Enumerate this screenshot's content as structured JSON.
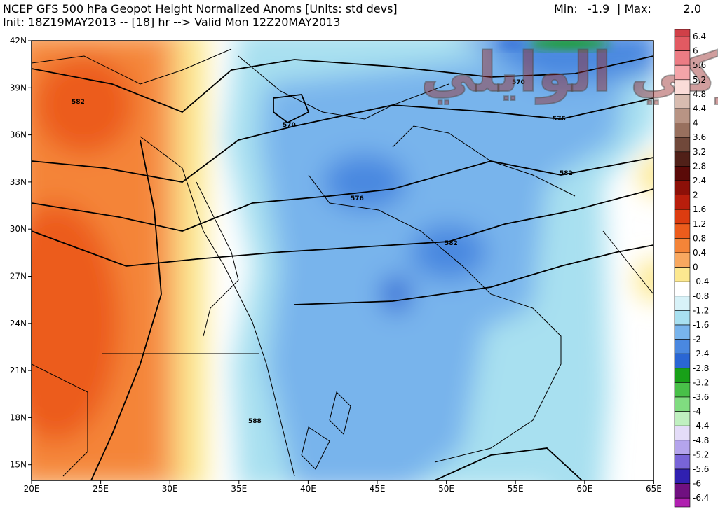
{
  "header": {
    "title": "NCEP GFS 500 hPa Geopot Height Normalized Anoms [Units: std devs]",
    "min_label": "Min:",
    "min": "-1.9",
    "max_label": "| Max:",
    "max": "2.0",
    "subtitle": "Init: 18Z19MAY2013 -- [18] hr --> Valid Mon 12Z20MAY2013"
  },
  "lat_labels": [
    "42N",
    "39N",
    "36N",
    "33N",
    "30N",
    "27N",
    "24N",
    "21N",
    "18N",
    "15N"
  ],
  "lon_labels": [
    "20E",
    "25E",
    "30E",
    "35E",
    "40E",
    "45E",
    "50E",
    "55E",
    "60E",
    "65E"
  ],
  "colorbar": {
    "labels": [
      "6.4",
      "6",
      "5.6",
      "5.2",
      "4.8",
      "4.4",
      "4",
      "3.6",
      "3.2",
      "2.8",
      "2.4",
      "2",
      "1.6",
      "1.2",
      "0.8",
      "0.4",
      "0",
      "-0.4",
      "-0.8",
      "-1.2",
      "-1.6",
      "-2",
      "-2.4",
      "-2.8",
      "-3.2",
      "-3.6",
      "-4",
      "-4.4",
      "-4.8",
      "-5.2",
      "-5.6",
      "-6",
      "-6.4"
    ],
    "colors": [
      "#d04048",
      "#e25a62",
      "#ec7c84",
      "#f4a4a8",
      "#fadcd8",
      "#d8bcb0",
      "#b89484",
      "#98705e",
      "#70483a",
      "#502018",
      "#5a0a08",
      "#8c1008",
      "#b81e0c",
      "#dc3c10",
      "#ec5c1c",
      "#f48438",
      "#f8a860",
      "#fce890",
      "#ffffff",
      "#d8f2f8",
      "#a8e0f0",
      "#78b4ec",
      "#4a88e0",
      "#2a66d4",
      "#18a018",
      "#48c048",
      "#80dc80",
      "#c0f0c0",
      "#e4dcf8",
      "#b4a4ec",
      "#7864d8",
      "#3020b0",
      "#701080",
      "#b020b0"
    ]
  },
  "contour_labels": [
    "582",
    "570",
    "570",
    "576",
    "576",
    "582",
    "582",
    "588"
  ],
  "watermark": "تركي الوايلي"
}
